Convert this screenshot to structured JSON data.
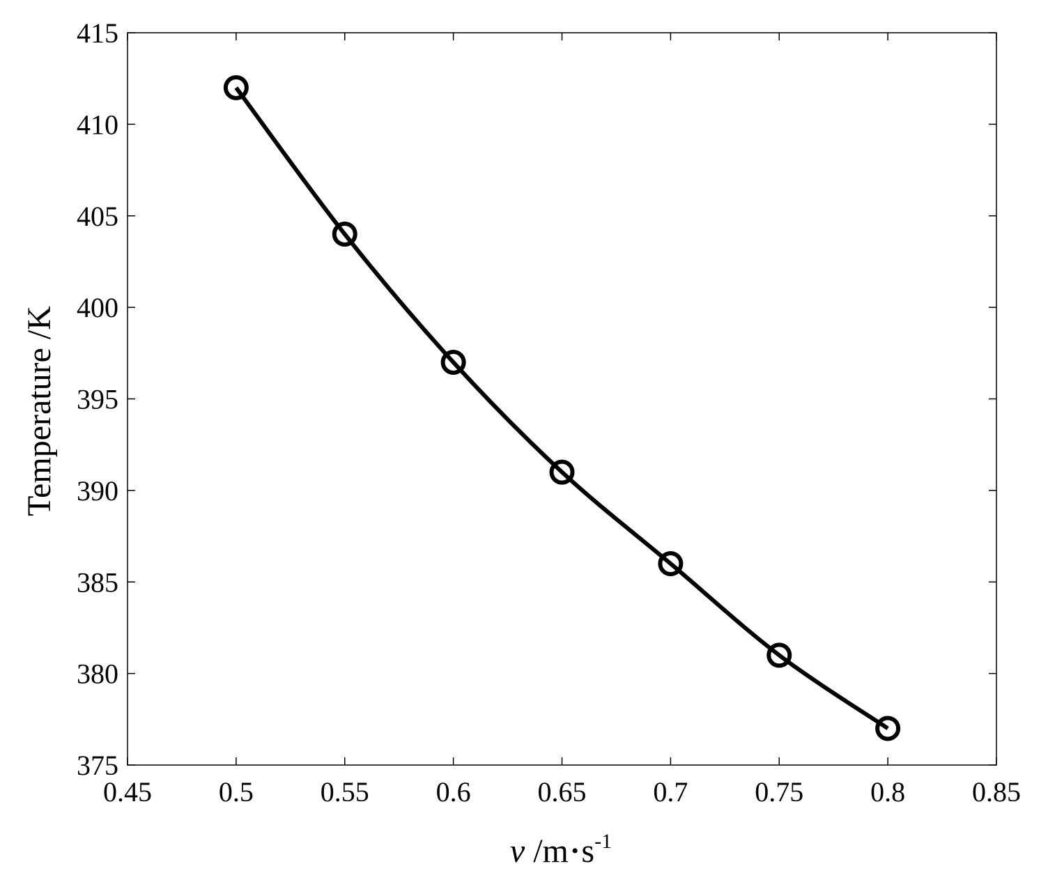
{
  "chart_data": {
    "type": "line",
    "title": "",
    "xlabel": {
      "var": "v",
      "unit": " /m",
      "dot": "•",
      "s": "s",
      "exp": "-1"
    },
    "ylabel": "Temperature /K",
    "xlim": [
      0.45,
      0.85
    ],
    "ylim": [
      375,
      415
    ],
    "xticks": [
      "0.45",
      "0.5",
      "0.55",
      "0.6",
      "0.65",
      "0.7",
      "0.75",
      "0.8",
      "0.85"
    ],
    "yticks": [
      "375",
      "380",
      "385",
      "390",
      "395",
      "400",
      "405",
      "410",
      "415"
    ],
    "grid": false,
    "legend": "none",
    "series": [
      {
        "marker": "circle",
        "color": "#000000",
        "x": [
          0.5,
          0.55,
          0.6,
          0.65,
          0.7,
          0.75,
          0.8
        ],
        "y": [
          412,
          404,
          397,
          391,
          386,
          381,
          377
        ]
      }
    ]
  }
}
